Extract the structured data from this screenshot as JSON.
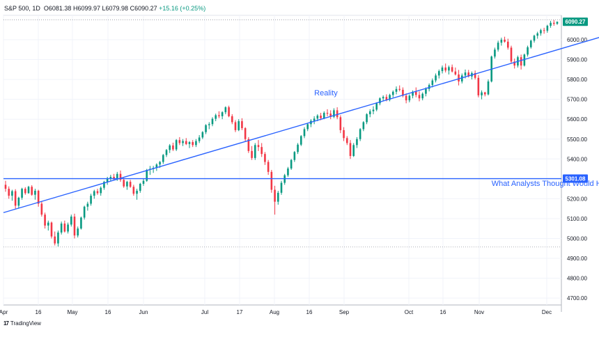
{
  "header": {
    "symbol": "S&P 500, 1D",
    "open": "O6081.38",
    "high": "H6099.97",
    "low": "L6079.98",
    "close": "C6090.27",
    "change": "+15.16 (+0.25%)"
  },
  "branding": {
    "logo_glyph": "17",
    "name": "TradingView"
  },
  "colors": {
    "up": "#089981",
    "down": "#f23645",
    "line": "#2962ff",
    "grid": "#f0f3fa",
    "axis_text": "#131722"
  },
  "chart_data": {
    "type": "candlestick",
    "ylim": [
      4650,
      6100
    ],
    "y_ticks": [
      "4700.00",
      "4800.00",
      "4900.00",
      "5000.00",
      "5100.00",
      "5200.00",
      "5300.00",
      "5400.00",
      "5500.00",
      "5600.00",
      "5700.00",
      "5800.00",
      "5900.00",
      "6000.00"
    ],
    "x_ticks": [
      "Apr",
      "16",
      "May",
      "16",
      "Jun",
      "Jul",
      "17",
      "Aug",
      "16",
      "Sep",
      "Oct",
      "16",
      "Nov",
      "Dec"
    ],
    "price_labels": [
      {
        "value": 6090.27,
        "label": "6090.27",
        "color": "#089981"
      },
      {
        "value": 5301.08,
        "label": "5301.08",
        "color": "#2962ff"
      }
    ],
    "dotted_levels": [
      6099.97,
      4957
    ],
    "annotations": [
      {
        "text": "Reality",
        "anchor_index": 94,
        "value": 5720
      },
      {
        "text": "What Analysts Thought Would Happen",
        "anchor_index": 148,
        "value": 5265
      }
    ],
    "horizontal_line": {
      "value": 5301.08
    },
    "trend_line": {
      "start_index": 0,
      "start_value": 5130,
      "end_index": 196,
      "end_value": 6085
    },
    "candles": [
      [
        5270,
        5290,
        5235,
        5250
      ],
      [
        5250,
        5262,
        5200,
        5215
      ],
      [
        5215,
        5245,
        5190,
        5238
      ],
      [
        5238,
        5248,
        5150,
        5165
      ],
      [
        5165,
        5210,
        5150,
        5205
      ],
      [
        5205,
        5255,
        5195,
        5250
      ],
      [
        5250,
        5258,
        5220,
        5228
      ],
      [
        5228,
        5265,
        5225,
        5260
      ],
      [
        5260,
        5268,
        5215,
        5220
      ],
      [
        5220,
        5250,
        5195,
        5240
      ],
      [
        5240,
        5245,
        5160,
        5175
      ],
      [
        5175,
        5185,
        5110,
        5120
      ],
      [
        5120,
        5130,
        5050,
        5065
      ],
      [
        5065,
        5090,
        5040,
        5080
      ],
      [
        5080,
        5085,
        5000,
        5010
      ],
      [
        5010,
        5035,
        4965,
        4975
      ],
      [
        4975,
        5040,
        4960,
        5030
      ],
      [
        5030,
        5085,
        5020,
        5075
      ],
      [
        5075,
        5090,
        5030,
        5035
      ],
      [
        5035,
        5080,
        5025,
        5070
      ],
      [
        5070,
        5120,
        5060,
        5110
      ],
      [
        5110,
        5125,
        5000,
        5015
      ],
      [
        5015,
        5060,
        5005,
        5050
      ],
      [
        5050,
        5110,
        5045,
        5105
      ],
      [
        5105,
        5165,
        5095,
        5160
      ],
      [
        5160,
        5185,
        5140,
        5175
      ],
      [
        5175,
        5225,
        5165,
        5215
      ],
      [
        5215,
        5245,
        5200,
        5238
      ],
      [
        5238,
        5250,
        5220,
        5228
      ],
      [
        5228,
        5262,
        5215,
        5255
      ],
      [
        5255,
        5290,
        5245,
        5285
      ],
      [
        5285,
        5310,
        5270,
        5302
      ],
      [
        5302,
        5320,
        5290,
        5310
      ],
      [
        5310,
        5325,
        5295,
        5298
      ],
      [
        5298,
        5335,
        5290,
        5325
      ],
      [
        5325,
        5342,
        5285,
        5295
      ],
      [
        5295,
        5305,
        5255,
        5262
      ],
      [
        5262,
        5290,
        5245,
        5285
      ],
      [
        5285,
        5295,
        5255,
        5260
      ],
      [
        5260,
        5270,
        5215,
        5225
      ],
      [
        5225,
        5250,
        5195,
        5240
      ],
      [
        5240,
        5280,
        5230,
        5275
      ],
      [
        5275,
        5300,
        5265,
        5290
      ],
      [
        5290,
        5350,
        5285,
        5345
      ],
      [
        5345,
        5365,
        5320,
        5350
      ],
      [
        5350,
        5365,
        5330,
        5355
      ],
      [
        5355,
        5378,
        5340,
        5372
      ],
      [
        5372,
        5390,
        5355,
        5385
      ],
      [
        5385,
        5425,
        5375,
        5420
      ],
      [
        5420,
        5450,
        5410,
        5445
      ],
      [
        5445,
        5475,
        5430,
        5468
      ],
      [
        5468,
        5482,
        5440,
        5448
      ],
      [
        5448,
        5500,
        5440,
        5495
      ],
      [
        5495,
        5510,
        5470,
        5480
      ],
      [
        5480,
        5500,
        5465,
        5490
      ],
      [
        5490,
        5505,
        5470,
        5475
      ],
      [
        5475,
        5490,
        5455,
        5485
      ],
      [
        5485,
        5495,
        5460,
        5470
      ],
      [
        5470,
        5500,
        5460,
        5490
      ],
      [
        5490,
        5520,
        5480,
        5508
      ],
      [
        5508,
        5540,
        5500,
        5535
      ],
      [
        5535,
        5575,
        5525,
        5570
      ],
      [
        5570,
        5585,
        5550,
        5575
      ],
      [
        5575,
        5610,
        5565,
        5602
      ],
      [
        5602,
        5628,
        5590,
        5620
      ],
      [
        5620,
        5640,
        5605,
        5615
      ],
      [
        5615,
        5640,
        5600,
        5635
      ],
      [
        5635,
        5665,
        5625,
        5660
      ],
      [
        5660,
        5668,
        5610,
        5615
      ],
      [
        5615,
        5625,
        5575,
        5585
      ],
      [
        5585,
        5595,
        5535,
        5545
      ],
      [
        5545,
        5600,
        5540,
        5590
      ],
      [
        5590,
        5605,
        5545,
        5555
      ],
      [
        5555,
        5560,
        5490,
        5500
      ],
      [
        5500,
        5510,
        5430,
        5440
      ],
      [
        5440,
        5465,
        5395,
        5405
      ],
      [
        5405,
        5480,
        5395,
        5470
      ],
      [
        5470,
        5495,
        5440,
        5460
      ],
      [
        5460,
        5480,
        5410,
        5425
      ],
      [
        5425,
        5435,
        5370,
        5385
      ],
      [
        5385,
        5395,
        5320,
        5335
      ],
      [
        5335,
        5345,
        5230,
        5245
      ],
      [
        5245,
        5265,
        5120,
        5185
      ],
      [
        5185,
        5240,
        5170,
        5230
      ],
      [
        5230,
        5290,
        5220,
        5280
      ],
      [
        5280,
        5325,
        5270,
        5318
      ],
      [
        5318,
        5360,
        5310,
        5352
      ],
      [
        5352,
        5400,
        5345,
        5395
      ],
      [
        5395,
        5440,
        5385,
        5435
      ],
      [
        5435,
        5480,
        5425,
        5472
      ],
      [
        5472,
        5520,
        5465,
        5515
      ],
      [
        5515,
        5560,
        5505,
        5550
      ],
      [
        5550,
        5580,
        5540,
        5575
      ],
      [
        5575,
        5600,
        5560,
        5592
      ],
      [
        5592,
        5615,
        5575,
        5603
      ],
      [
        5603,
        5625,
        5590,
        5618
      ],
      [
        5618,
        5632,
        5595,
        5605
      ],
      [
        5605,
        5640,
        5600,
        5632
      ],
      [
        5632,
        5650,
        5615,
        5628
      ],
      [
        5628,
        5645,
        5600,
        5612
      ],
      [
        5612,
        5655,
        5605,
        5645
      ],
      [
        5645,
        5660,
        5600,
        5610
      ],
      [
        5610,
        5620,
        5530,
        5545
      ],
      [
        5545,
        5560,
        5490,
        5505
      ],
      [
        5505,
        5515,
        5470,
        5480
      ],
      [
        5480,
        5495,
        5400,
        5415
      ],
      [
        5415,
        5480,
        5410,
        5470
      ],
      [
        5470,
        5510,
        5455,
        5500
      ],
      [
        5500,
        5555,
        5490,
        5550
      ],
      [
        5550,
        5590,
        5540,
        5585
      ],
      [
        5585,
        5630,
        5575,
        5625
      ],
      [
        5625,
        5650,
        5610,
        5640
      ],
      [
        5640,
        5665,
        5625,
        5648
      ],
      [
        5648,
        5685,
        5640,
        5680
      ],
      [
        5680,
        5710,
        5670,
        5705
      ],
      [
        5705,
        5720,
        5690,
        5712
      ],
      [
        5712,
        5725,
        5690,
        5698
      ],
      [
        5698,
        5728,
        5690,
        5722
      ],
      [
        5722,
        5745,
        5710,
        5738
      ],
      [
        5738,
        5765,
        5725,
        5752
      ],
      [
        5752,
        5770,
        5740,
        5748
      ],
      [
        5748,
        5760,
        5710,
        5718
      ],
      [
        5718,
        5730,
        5680,
        5695
      ],
      [
        5695,
        5725,
        5685,
        5718
      ],
      [
        5718,
        5745,
        5705,
        5738
      ],
      [
        5738,
        5760,
        5710,
        5722
      ],
      [
        5722,
        5740,
        5690,
        5705
      ],
      [
        5705,
        5735,
        5695,
        5728
      ],
      [
        5728,
        5760,
        5715,
        5752
      ],
      [
        5752,
        5780,
        5740,
        5772
      ],
      [
        5772,
        5805,
        5760,
        5795
      ],
      [
        5795,
        5830,
        5785,
        5820
      ],
      [
        5820,
        5850,
        5805,
        5842
      ],
      [
        5842,
        5870,
        5830,
        5860
      ],
      [
        5860,
        5880,
        5835,
        5845
      ],
      [
        5845,
        5870,
        5825,
        5862
      ],
      [
        5862,
        5875,
        5835,
        5840
      ],
      [
        5840,
        5860,
        5820,
        5825
      ],
      [
        5825,
        5848,
        5770,
        5790
      ],
      [
        5790,
        5830,
        5780,
        5820
      ],
      [
        5820,
        5850,
        5805,
        5835
      ],
      [
        5835,
        5848,
        5810,
        5815
      ],
      [
        5815,
        5840,
        5800,
        5832
      ],
      [
        5832,
        5845,
        5800,
        5808
      ],
      [
        5808,
        5822,
        5710,
        5720
      ],
      [
        5720,
        5745,
        5700,
        5735
      ],
      [
        5735,
        5738,
        5715,
        5725
      ],
      [
        5725,
        5800,
        5720,
        5790
      ],
      [
        5790,
        5920,
        5785,
        5915
      ],
      [
        5915,
        5960,
        5905,
        5950
      ],
      [
        5950,
        5995,
        5940,
        5985
      ],
      [
        5985,
        6010,
        5970,
        6000
      ],
      [
        6000,
        6015,
        5985,
        5990
      ],
      [
        5990,
        6005,
        5950,
        5960
      ],
      [
        5960,
        5970,
        5880,
        5890
      ],
      [
        5890,
        5905,
        5855,
        5870
      ],
      [
        5870,
        5920,
        5860,
        5912
      ],
      [
        5912,
        5925,
        5850,
        5870
      ],
      [
        5870,
        5930,
        5865,
        5925
      ],
      [
        5925,
        5970,
        5915,
        5962
      ],
      [
        5962,
        6000,
        5955,
        5995
      ],
      [
        5995,
        6025,
        5985,
        6020
      ],
      [
        6020,
        6040,
        6005,
        6032
      ],
      [
        6032,
        6055,
        6020,
        6048
      ],
      [
        6048,
        6060,
        6030,
        6045
      ],
      [
        6045,
        6075,
        6035,
        6070
      ],
      [
        6070,
        6095,
        6060,
        6085
      ],
      [
        6085,
        6099,
        6070,
        6080
      ],
      [
        6080,
        6092,
        6075,
        6090
      ]
    ]
  }
}
